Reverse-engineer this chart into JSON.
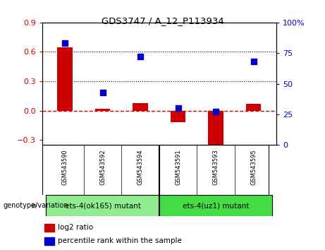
{
  "title": "GDS3747 / A_12_P113934",
  "samples": [
    "GSM543590",
    "GSM543592",
    "GSM543594",
    "GSM543591",
    "GSM543593",
    "GSM543595"
  ],
  "log2_ratio": [
    0.65,
    0.02,
    0.08,
    -0.12,
    -0.35,
    0.07
  ],
  "percentile_rank": [
    83,
    43,
    72,
    30,
    27,
    68
  ],
  "ylim_left": [
    -0.35,
    0.9
  ],
  "ylim_right": [
    0,
    100
  ],
  "yticks_left": [
    -0.3,
    0.0,
    0.3,
    0.6,
    0.9
  ],
  "yticks_right": [
    0,
    25,
    50,
    75,
    100
  ],
  "bar_color": "#cc0000",
  "dot_color": "#0000cc",
  "hline_color": "#cc0000",
  "dotted_line_color": "#000000",
  "group1_label": "ets-4(ok165) mutant",
  "group2_label": "ets-4(uz1) mutant",
  "group1_color": "#90ee90",
  "group2_color": "#44dd44",
  "legend_log2": "log2 ratio",
  "legend_pct": "percentile rank within the sample",
  "genotype_label": "genotype/variation",
  "tick_bg_color": "#c8c8c8",
  "plot_bg_color": "#ffffff",
  "bar_width": 0.4
}
